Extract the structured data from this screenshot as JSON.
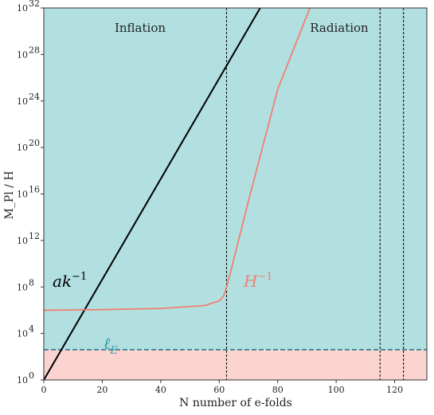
{
  "chart_data": {
    "type": "line",
    "xlabel": "N number of e-folds",
    "ylabel": "M_Pl / H",
    "xlim": [
      0,
      131
    ],
    "ylim_log10": [
      0,
      32
    ],
    "y_scale": "log",
    "x_ticks": [
      0,
      20,
      40,
      60,
      80,
      100,
      120
    ],
    "y_ticks": [
      {
        "exp": 0,
        "label": "10",
        "sup": "0"
      },
      {
        "exp": 4,
        "label": "10",
        "sup": "4"
      },
      {
        "exp": 8,
        "label": "10",
        "sup": "8"
      },
      {
        "exp": 12,
        "label": "10",
        "sup": "12"
      },
      {
        "exp": 16,
        "label": "10",
        "sup": "16"
      },
      {
        "exp": 20,
        "label": "10",
        "sup": "20"
      },
      {
        "exp": 24,
        "label": "10",
        "sup": "24"
      },
      {
        "exp": 28,
        "label": "10",
        "sup": "28"
      },
      {
        "exp": 32,
        "label": "10",
        "sup": "32"
      }
    ],
    "region_labels": {
      "inflation": "Inflation",
      "radiation": "Radiation"
    },
    "background_colors": {
      "upper": "#b2dfe0",
      "lower": "#fbd3cf"
    },
    "ell_E_log10": 2.6,
    "vlines": [
      62.5,
      115,
      123
    ],
    "series": [
      {
        "label": "ak^{-1}",
        "label_text": "ak",
        "label_sup": "−1",
        "color": "#000000",
        "x": [
          0,
          74
        ],
        "y_log10": [
          0,
          32
        ]
      },
      {
        "label": "H^{-1}",
        "label_text": "H",
        "label_sup": "−1",
        "color": "#f08070",
        "x": [
          0,
          20,
          40,
          55,
          60,
          61.5,
          62.5,
          64,
          70,
          80,
          91
        ],
        "y_log10": [
          6.0,
          6.05,
          6.15,
          6.4,
          6.8,
          7.2,
          8.0,
          9.4,
          15.4,
          25.0,
          32
        ]
      }
    ],
    "ell_E_label_text": "ℓ",
    "ell_E_label_sub": "E",
    "ell_E_color": "#2a9d9f"
  }
}
